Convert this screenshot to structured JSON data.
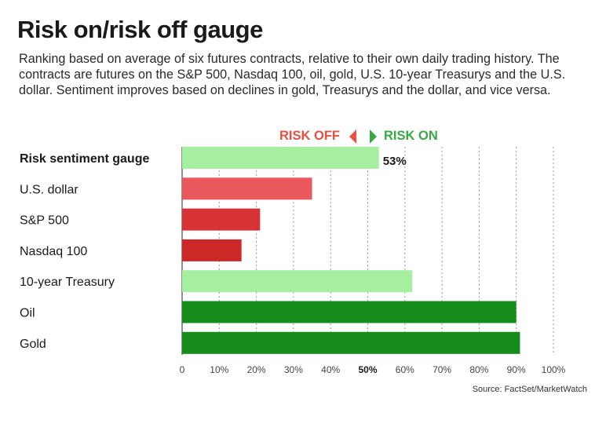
{
  "header": {
    "title": "Risk on/risk off gauge",
    "subtitle": "Ranking based on average of six futures contracts, relative to their own daily trading history. The contracts are futures on the S&P 500, Nasdaq 100, oil, gold, U.S. 10-year Treasurys and the U.S. dollar. Sentiment improves based on declines in gold, Treasurys and the dollar, and vice versa."
  },
  "legend": {
    "risk_off": "RISK OFF",
    "risk_on": "RISK ON",
    "risk_off_color": "#e8503f",
    "risk_on_color": "#3aa843"
  },
  "source": "Source: FactSet/MarketWatch",
  "chart_data": {
    "type": "bar",
    "orientation": "horizontal",
    "categories": [
      "Risk sentiment gauge",
      "U.S. dollar",
      "S&P 500",
      "Nasdaq 100",
      "10-year Treasury",
      "Oil",
      "Gold"
    ],
    "values": [
      53,
      35,
      21,
      16,
      62,
      90,
      91
    ],
    "colors": [
      "#a6eea0",
      "#e9585d",
      "#d73236",
      "#cc2828",
      "#a6eea0",
      "#168c1d",
      "#168c1d"
    ],
    "value_labels": [
      "53%",
      "",
      "",
      "",
      "",
      "",
      ""
    ],
    "bold_categories": [
      "Risk sentiment gauge"
    ],
    "xlim": [
      0,
      100
    ],
    "xticks": [
      "0",
      "10%",
      "20%",
      "30%",
      "40%",
      "50%",
      "60%",
      "70%",
      "80%",
      "90%",
      "100%"
    ],
    "bold_tick": "50%",
    "grid": "vertical dotted"
  }
}
